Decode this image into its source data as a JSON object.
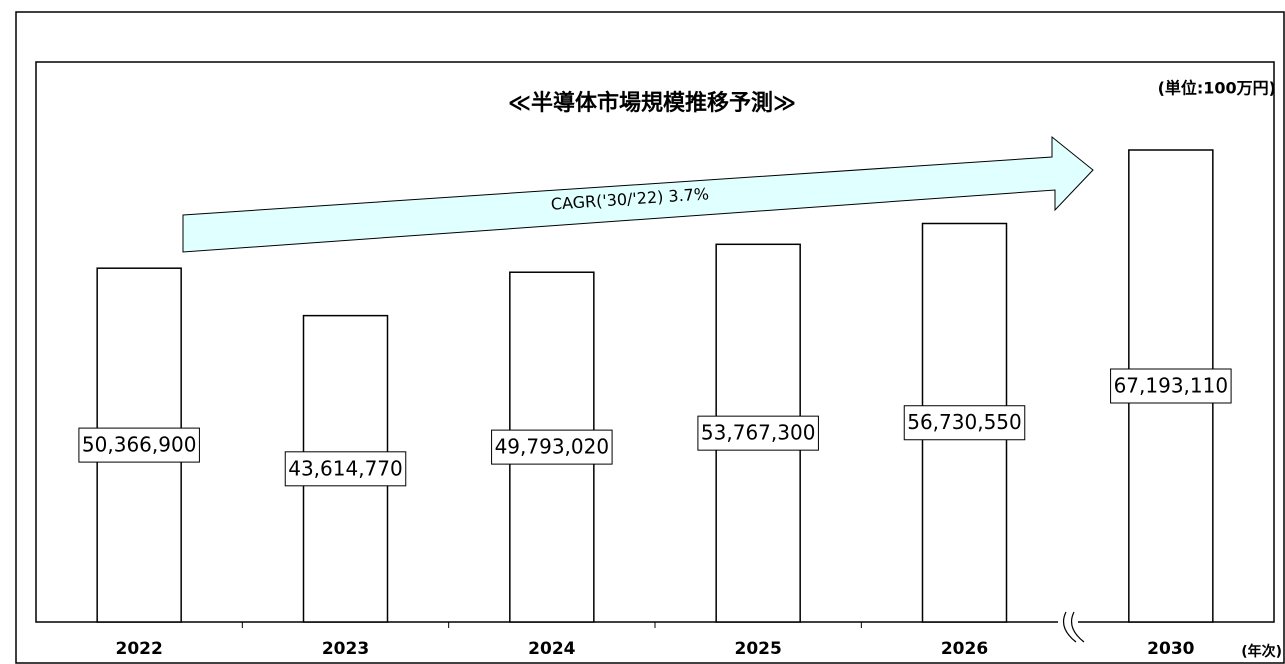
{
  "chart_data": {
    "type": "bar",
    "title": "≪半導体市場規模推移予測≫",
    "unit_label": "(単位:100万円)",
    "x_label": "(年次)",
    "annotation": "CAGR('30/'22) 3.7%",
    "categories": [
      "2022",
      "2023",
      "2024",
      "2025",
      "2026",
      "2030"
    ],
    "values": [
      50366900,
      43614770,
      49793020,
      53767300,
      56730550,
      67193110
    ],
    "value_labels": [
      "50,366,900",
      "43,614,770",
      "49,793,020",
      "53,767,300",
      "56,730,550",
      "67,193,110"
    ],
    "color": "#ffffff"
  }
}
